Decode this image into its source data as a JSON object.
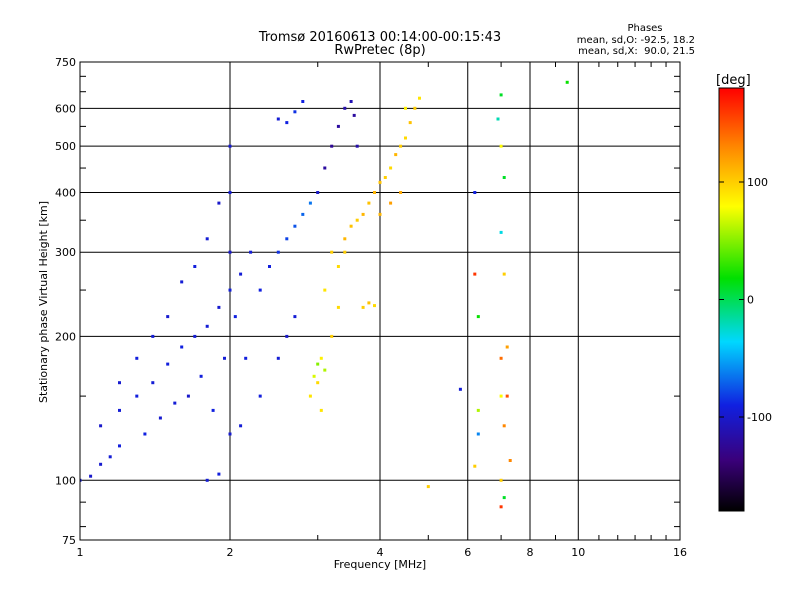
{
  "chart_data": {
    "type": "scatter",
    "title": "Tromsø 20160613 00:14:00-00:15:43",
    "subtitle": "RwPretec (8p)",
    "xlabel": "Frequency [MHz]",
    "ylabel": "Stationary phase Virtual Height [km]",
    "x_scale": "log",
    "y_scale": "log",
    "xlim": [
      1,
      16
    ],
    "ylim": [
      75,
      750
    ],
    "grid": true,
    "x_ticks": [
      1,
      2,
      4,
      6,
      8,
      10,
      16
    ],
    "x_tick_labels": [
      "1",
      "2",
      "4",
      "6",
      "8",
      "10",
      "16"
    ],
    "y_ticks": [
      75,
      100,
      200,
      300,
      400,
      500,
      600,
      750
    ],
    "y_tick_labels": [
      "75",
      "100",
      "200",
      "300",
      "400",
      "500",
      "600",
      "750"
    ],
    "phase_info": {
      "heading": "Phases",
      "line_o": "mean, sd,O: -92.5, 18.2",
      "line_x": "mean, sd,X:  90.0, 21.5"
    },
    "colorbar": {
      "label": "[deg]",
      "range": [
        -180,
        180
      ],
      "ticks": [
        100,
        0,
        -100
      ],
      "tick_labels": [
        "100",
        "0",
        "-100"
      ]
    },
    "series": [
      {
        "mode": "O",
        "points": [
          [
            1.0,
            100,
            -95
          ],
          [
            1.05,
            102,
            -100
          ],
          [
            1.1,
            108,
            -98
          ],
          [
            1.15,
            112,
            -95
          ],
          [
            1.2,
            118,
            -92
          ],
          [
            1.1,
            130,
            -100
          ],
          [
            1.2,
            140,
            -95
          ],
          [
            1.3,
            150,
            -92
          ],
          [
            1.35,
            125,
            -90
          ],
          [
            1.4,
            160,
            -95
          ],
          [
            1.45,
            135,
            -98
          ],
          [
            1.5,
            175,
            -92
          ],
          [
            1.55,
            145,
            -95
          ],
          [
            1.6,
            190,
            -90
          ],
          [
            1.65,
            150,
            -100
          ],
          [
            1.7,
            200,
            -95
          ],
          [
            1.75,
            165,
            -92
          ],
          [
            1.8,
            210,
            -95
          ],
          [
            1.85,
            140,
            -90
          ],
          [
            1.9,
            230,
            -98
          ],
          [
            1.95,
            180,
            -95
          ],
          [
            2.0,
            250,
            -92
          ],
          [
            2.0,
            300,
            -100
          ],
          [
            2.0,
            400,
            -95
          ],
          [
            2.0,
            500,
            -98
          ],
          [
            2.05,
            220,
            -90
          ],
          [
            2.1,
            270,
            -95
          ],
          [
            2.15,
            180,
            -92
          ],
          [
            2.2,
            300,
            -95
          ],
          [
            2.3,
            250,
            -90
          ],
          [
            2.4,
            280,
            -92
          ],
          [
            2.5,
            300,
            -85
          ],
          [
            2.6,
            320,
            -80
          ],
          [
            2.7,
            340,
            -75
          ],
          [
            2.8,
            360,
            -70
          ],
          [
            2.9,
            380,
            -65
          ],
          [
            3.0,
            400,
            -100
          ],
          [
            3.1,
            450,
            -120
          ],
          [
            3.2,
            500,
            -125
          ],
          [
            3.3,
            550,
            -120
          ],
          [
            3.4,
            600,
            -115
          ],
          [
            3.5,
            620,
            -110
          ],
          [
            3.55,
            580,
            -120
          ],
          [
            3.6,
            500,
            -115
          ],
          [
            2.6,
            560,
            -90
          ],
          [
            2.7,
            590,
            -85
          ],
          [
            2.8,
            620,
            -90
          ],
          [
            2.5,
            570,
            -95
          ],
          [
            1.8,
            100,
            -95
          ],
          [
            1.9,
            103,
            -92
          ],
          [
            2.0,
            125,
            -98
          ],
          [
            2.1,
            130,
            -95
          ],
          [
            2.3,
            150,
            -92
          ],
          [
            2.5,
            180,
            -95
          ],
          [
            2.6,
            200,
            -100
          ],
          [
            2.7,
            220,
            -95
          ],
          [
            1.5,
            220,
            -98
          ],
          [
            1.6,
            260,
            -95
          ],
          [
            1.7,
            280,
            -92
          ],
          [
            1.8,
            320,
            -95
          ],
          [
            1.9,
            380,
            -100
          ],
          [
            1.4,
            200,
            -95
          ],
          [
            1.3,
            180,
            -92
          ],
          [
            1.2,
            160,
            -98
          ]
        ]
      },
      {
        "mode": "X",
        "points": [
          [
            2.9,
            150,
            90
          ],
          [
            3.0,
            160,
            95
          ],
          [
            3.1,
            170,
            60
          ],
          [
            3.05,
            180,
            85
          ],
          [
            3.2,
            200,
            100
          ],
          [
            3.3,
            230,
            95
          ],
          [
            3.1,
            250,
            90
          ],
          [
            3.2,
            300,
            100
          ],
          [
            3.4,
            320,
            110
          ],
          [
            3.5,
            340,
            105
          ],
          [
            3.6,
            350,
            100
          ],
          [
            3.7,
            360,
            110
          ],
          [
            3.8,
            380,
            105
          ],
          [
            3.9,
            400,
            110
          ],
          [
            4.0,
            420,
            105
          ],
          [
            4.1,
            430,
            100
          ],
          [
            4.2,
            450,
            95
          ],
          [
            4.3,
            480,
            110
          ],
          [
            4.4,
            500,
            100
          ],
          [
            4.5,
            520,
            95
          ],
          [
            4.6,
            560,
            105
          ],
          [
            4.7,
            600,
            100
          ],
          [
            4.8,
            630,
            90
          ],
          [
            4.5,
            600,
            85
          ],
          [
            3.7,
            230,
            100
          ],
          [
            3.8,
            235,
            105
          ],
          [
            3.9,
            232,
            95
          ],
          [
            4.0,
            360,
            110
          ],
          [
            4.2,
            380,
            120
          ],
          [
            4.4,
            400,
            115
          ],
          [
            3.3,
            280,
            95
          ],
          [
            3.4,
            300,
            100
          ],
          [
            5.0,
            97,
            100
          ],
          [
            3.05,
            140,
            90
          ],
          [
            2.95,
            165,
            70
          ],
          [
            3.0,
            175,
            50
          ]
        ]
      },
      {
        "mode": "other",
        "points": [
          [
            6.2,
            270,
            160
          ],
          [
            6.3,
            220,
            20
          ],
          [
            6.3,
            140,
            60
          ],
          [
            6.3,
            125,
            -60
          ],
          [
            6.2,
            400,
            -90
          ],
          [
            7.0,
            640,
            10
          ],
          [
            6.9,
            570,
            -20
          ],
          [
            7.0,
            500,
            80
          ],
          [
            7.1,
            430,
            10
          ],
          [
            7.0,
            330,
            -30
          ],
          [
            7.1,
            270,
            100
          ],
          [
            7.2,
            190,
            120
          ],
          [
            7.0,
            180,
            140
          ],
          [
            7.2,
            150,
            150
          ],
          [
            7.0,
            150,
            80
          ],
          [
            7.1,
            130,
            130
          ],
          [
            7.0,
            88,
            160
          ],
          [
            7.1,
            92,
            10
          ],
          [
            5.8,
            155,
            -95
          ],
          [
            9.5,
            680,
            20
          ],
          [
            7.3,
            110,
            130
          ],
          [
            6.2,
            107,
            100
          ],
          [
            7.0,
            100,
            100
          ]
        ]
      }
    ]
  }
}
